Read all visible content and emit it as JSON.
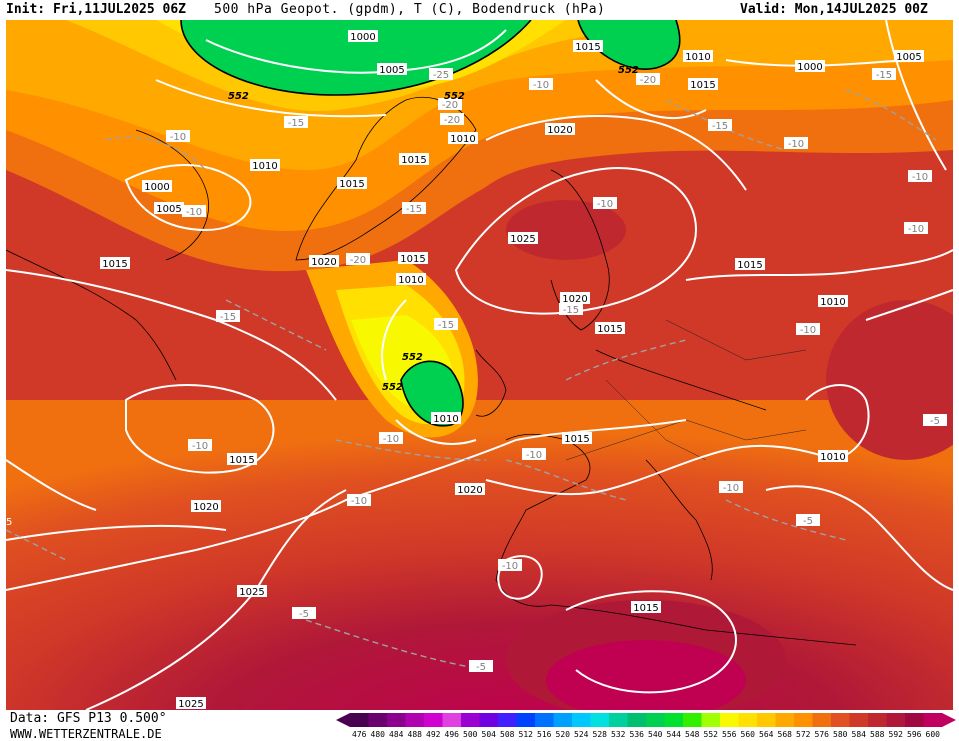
{
  "header": {
    "init": "Init: Fri,11JUL2025 06Z",
    "title": "500 hPa Geopot. (gpdm), T (C), Bodendruck (hPa)",
    "valid": "Valid: Mon,14JUL2025 00Z"
  },
  "footer": {
    "data_source": "Data: GFS P13 0.500°",
    "website": "WWW.WETTERZENTRALE.DE"
  },
  "legend": {
    "scale_values": [
      "476",
      "480",
      "484",
      "488",
      "492",
      "496",
      "500",
      "504",
      "508",
      "512",
      "516",
      "520",
      "524",
      "528",
      "532",
      "536",
      "540",
      "544",
      "548",
      "552",
      "556",
      "560",
      "564",
      "568",
      "572",
      "576",
      "580",
      "584",
      "588",
      "592",
      "596",
      "600"
    ],
    "scale_colors": [
      "#4a0050",
      "#6a0070",
      "#8c0090",
      "#b000b0",
      "#d000d0",
      "#e040e0",
      "#9a00d0",
      "#7000e0",
      "#4020ff",
      "#0040ff",
      "#0070ff",
      "#00a0ff",
      "#00c8ff",
      "#00e0e0",
      "#00d0a0",
      "#00c070",
      "#00d050",
      "#00e030",
      "#30f000",
      "#a0ff00",
      "#f8f800",
      "#ffe000",
      "#ffc800",
      "#ffa800",
      "#ff9000",
      "#f07010",
      "#e05020",
      "#d03828",
      "#c02830",
      "#b01838",
      "#a00840",
      "#c00060"
    ]
  },
  "isobars": [
    {
      "label": "1000",
      "pos": "greenland-north"
    },
    {
      "label": "1005",
      "pos": "greenland-north"
    },
    {
      "label": "1015",
      "pos": "svalbard"
    },
    {
      "label": "1010",
      "pos": "barents"
    },
    {
      "label": "1015",
      "pos": "barents"
    },
    {
      "label": "1000",
      "pos": "kara"
    },
    {
      "label": "1005",
      "pos": "kara-east"
    },
    {
      "label": "1020",
      "pos": "norwegian-sea"
    },
    {
      "label": "1010",
      "pos": "greenland-sea"
    },
    {
      "label": "1015",
      "pos": "greenland-east"
    },
    {
      "label": "1015",
      "pos": "greenland-south"
    },
    {
      "label": "1010",
      "pos": "greenland-west"
    },
    {
      "label": "1000",
      "pos": "baffin"
    },
    {
      "label": "1005",
      "pos": "labrador"
    },
    {
      "label": "1015",
      "pos": "newfoundland"
    },
    {
      "label": "1020",
      "pos": "iceland-south"
    },
    {
      "label": "1015",
      "pos": "iceland-southeast"
    },
    {
      "label": "1010",
      "pos": "north-atlantic"
    },
    {
      "label": "1025",
      "pos": "norway"
    },
    {
      "label": "1020",
      "pos": "southern-norway"
    },
    {
      "label": "1015",
      "pos": "denmark"
    },
    {
      "label": "1015",
      "pos": "russia"
    },
    {
      "label": "1010",
      "pos": "urals"
    },
    {
      "label": "1010",
      "pos": "ireland"
    },
    {
      "label": "1015",
      "pos": "north-sea-south"
    },
    {
      "label": "1015",
      "pos": "mid-atlantic"
    },
    {
      "label": "1020",
      "pos": "mid-atlantic-south"
    },
    {
      "label": "1020",
      "pos": "biscay"
    },
    {
      "label": "1025",
      "pos": "azores"
    },
    {
      "label": "1010",
      "pos": "caspian"
    },
    {
      "label": "1015",
      "pos": "north-africa"
    },
    {
      "label": "1025",
      "pos": "subtropical-atlantic"
    }
  ],
  "temperatures": [
    "-25",
    "-20",
    "-20",
    "-15",
    "-10",
    "-20",
    "-10",
    "-15",
    "-15",
    "-10",
    "-10",
    "-15",
    "-20",
    "-15",
    "-15",
    "-10",
    "-10",
    "-15",
    "-10",
    "-10",
    "-10",
    "-10",
    "-10",
    "-5",
    "-10",
    "-5",
    "-5",
    "-5",
    "-10",
    "-10",
    "5"
  ],
  "geopot_labels": [
    "552",
    "552",
    "552",
    "552",
    "552"
  ]
}
